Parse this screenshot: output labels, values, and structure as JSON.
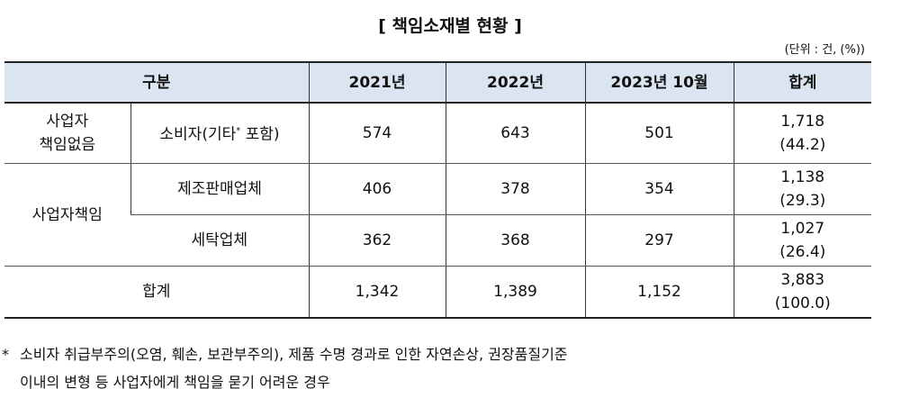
{
  "title": "[ 책임소재별 현황 ]",
  "unit": "(단위 : 건, (%))",
  "table": {
    "header": [
      "구분",
      "2021년",
      "2022년",
      "2023년 10월",
      "합계"
    ],
    "rows": [
      {
        "group": [
          "사업자",
          "책임없음"
        ],
        "category": [
          "소비자(기타",
          "*",
          " 포함)"
        ],
        "values": [
          "574",
          "643",
          "501"
        ],
        "total": "1,718",
        "share": "(44.2)"
      },
      {
        "group": [
          "사업자책임"
        ],
        "category": [
          "제조판매업체"
        ],
        "values": [
          "406",
          "378",
          "354"
        ],
        "total": "1,138",
        "share": "(29.3)"
      },
      {
        "category": [
          "세탁업체"
        ],
        "values": [
          "362",
          "368",
          "297"
        ],
        "total": "1,027",
        "share": "(26.4)"
      },
      {
        "group": [
          "합계"
        ],
        "values": [
          "1,342",
          "1,389",
          "1,152"
        ],
        "total": "3,883",
        "share": "(100.0)"
      }
    ]
  },
  "footnote": {
    "marker": "*",
    "lines": [
      "소비자 취급부주의(오염, 훼손, 보관부주의), 제품 수명 경과로 인한 자연손상, 권장품질기준",
      "이내의 변형 등 사업자에게 책임을 묻기 어려운 경우"
    ]
  }
}
